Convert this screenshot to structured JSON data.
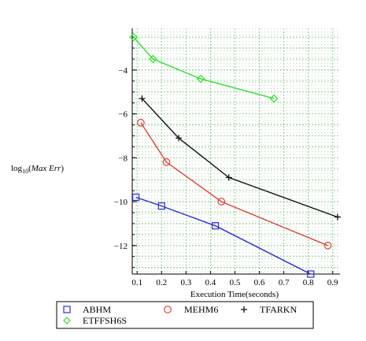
{
  "chart_data": {
    "type": "line",
    "title": "",
    "xlabel": "Execution Time(seconds)",
    "ylabel": {
      "base": "log",
      "subscript": "10",
      "open": "(",
      "arg": "Max Err",
      "close": ")"
    },
    "xlim": [
      0.08,
      0.93
    ],
    "ylim": [
      -13.3,
      -2.1
    ],
    "xticks": [
      0.1,
      0.2,
      0.3,
      0.4,
      0.5,
      0.6,
      0.7,
      0.8,
      0.9
    ],
    "xtick_labels": [
      "0.1",
      "0.2",
      "0.3",
      "0.4",
      "0.5",
      "0.6",
      "0.7",
      "0.8",
      "0.9"
    ],
    "yticks": [
      -4,
      -6,
      -8,
      -10,
      -12
    ],
    "ytick_labels": [
      "−4",
      "−6",
      "−8",
      "−10",
      "−12"
    ],
    "grid": true,
    "legend_position": "bottom",
    "series": [
      {
        "name": "ABHM",
        "marker": "square",
        "color": "#2b2bd9",
        "points": [
          [
            0.095,
            -9.8
          ],
          [
            0.2,
            -10.2
          ],
          [
            0.42,
            -11.1
          ],
          [
            0.81,
            -13.3
          ]
        ]
      },
      {
        "name": "MEHM6",
        "marker": "circle",
        "color": "#e0413a",
        "points": [
          [
            0.115,
            -6.4
          ],
          [
            0.22,
            -8.2
          ],
          [
            0.445,
            -10.0
          ],
          [
            0.88,
            -12.0
          ]
        ]
      },
      {
        "name": "TFARKN",
        "marker": "plus",
        "color": "#111111",
        "points": [
          [
            0.12,
            -5.3
          ],
          [
            0.27,
            -7.1
          ],
          [
            0.475,
            -8.9
          ],
          [
            0.92,
            -10.7
          ]
        ]
      },
      {
        "name": "ETFFSH6S",
        "marker": "diamond",
        "color": "#2ee02e",
        "points": [
          [
            0.085,
            -2.5
          ],
          [
            0.165,
            -3.5
          ],
          [
            0.36,
            -4.4
          ],
          [
            0.66,
            -5.3
          ]
        ]
      }
    ]
  }
}
